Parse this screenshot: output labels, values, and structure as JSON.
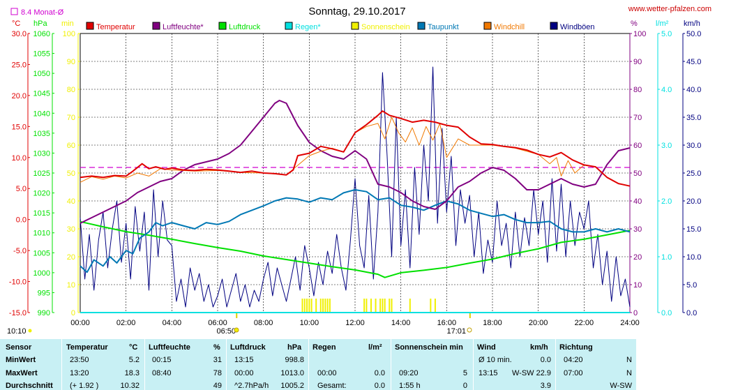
{
  "header": {
    "title": "Sonntag, 29.10.2017",
    "website": "www.wetter-pfalzen.com",
    "month_avg_label": "8.4 Monat-Ø",
    "left_units": [
      "°C",
      "hPa",
      "min"
    ],
    "right_units": [
      "%",
      "l/m²",
      "km/h"
    ],
    "sunrise_time": "06:50",
    "sunset_time": "17:01",
    "start_time": "10:10"
  },
  "colors": {
    "temperatur": "#e00000",
    "luftfeuchte": "#800080",
    "luftdruck": "#00e000",
    "regen": "#00e0e0",
    "sonnenschein": "#f0f000",
    "taupunkt": "#0078b4",
    "windchill": "#f07800",
    "windboeen": "#000080",
    "month_avg": "#d000d0"
  },
  "legend": [
    {
      "key": "temperatur",
      "label": "Temperatur"
    },
    {
      "key": "luftfeuchte",
      "label": "Luftfeuchte*"
    },
    {
      "key": "luftdruck",
      "label": "Luftdruck"
    },
    {
      "key": "regen",
      "label": "Regen*"
    },
    {
      "key": "sonnenschein",
      "label": "Sonnenschein"
    },
    {
      "key": "taupunkt",
      "label": "Taupunkt"
    },
    {
      "key": "windchill",
      "label": "Windchill"
    },
    {
      "key": "windboeen",
      "label": "Windböen"
    }
  ],
  "chart_data": {
    "type": "line",
    "x_ticks": [
      "00:00",
      "02:00",
      "04:00",
      "06:00",
      "08:00",
      "10:00",
      "12:00",
      "14:00",
      "16:00",
      "18:00",
      "20:00",
      "22:00",
      "24:00"
    ],
    "axes": {
      "temperature": {
        "unit": "°C",
        "range": [
          -15,
          30
        ],
        "ticks": [
          "30.0",
          "25.0",
          "20.0",
          "15.0",
          "10.0",
          "5.0",
          "0.0",
          "-5.0",
          "-10.0",
          "-15.0"
        ]
      },
      "pressure": {
        "unit": "hPa",
        "range": [
          990,
          1060
        ],
        "ticks": [
          "1060",
          "1055",
          "1050",
          "1045",
          "1040",
          "1035",
          "1030",
          "1025",
          "1020",
          "1015",
          "1010",
          "1005",
          "1000",
          "995",
          "990"
        ]
      },
      "sunshine": {
        "unit": "min",
        "range": [
          0,
          100
        ],
        "ticks": [
          "100",
          "90",
          "80",
          "70",
          "60",
          "50",
          "40",
          "30",
          "20",
          "10",
          "0"
        ]
      },
      "humidity": {
        "unit": "%",
        "range": [
          0,
          100
        ],
        "ticks": [
          "100",
          "90",
          "80",
          "70",
          "60",
          "50",
          "40",
          "30",
          "20",
          "10",
          "0"
        ]
      },
      "rain": {
        "unit": "l/m²",
        "range": [
          0,
          5
        ],
        "ticks": [
          "5.0",
          "4.0",
          "3.0",
          "2.0",
          "1.0",
          "0.0"
        ]
      },
      "wind": {
        "unit": "km/h",
        "range": [
          0,
          50
        ],
        "ticks": [
          "50.0",
          "45.0",
          "40.0",
          "35.0",
          "30.0",
          "25.0",
          "20.0",
          "15.0",
          "10.0",
          "5.0",
          "0.0"
        ]
      }
    },
    "month_avg_temp": 8.4,
    "series": [
      {
        "key": "temperatur",
        "name": "Temperatur",
        "axis": "temperature",
        "x": [
          0,
          0.5,
          1,
          1.5,
          2,
          2.3,
          2.7,
          3,
          3.3,
          3.7,
          4,
          4.5,
          5,
          5.5,
          6,
          6.5,
          7,
          7.5,
          8,
          8.5,
          9,
          9.3,
          9.5,
          10,
          10.5,
          11,
          11.5,
          12,
          12.5,
          13,
          13.2,
          13.5,
          14,
          14.5,
          15,
          15.5,
          16,
          16.5,
          17,
          17.5,
          18,
          18.5,
          19,
          19.5,
          20,
          20.5,
          21,
          21.5,
          22,
          22.5,
          23,
          23.5,
          24
        ],
        "y": [
          6.8,
          7.0,
          6.8,
          7.1,
          7.0,
          7.8,
          9.0,
          8.2,
          8.5,
          8.1,
          8.3,
          8.0,
          7.9,
          8.1,
          8.0,
          7.8,
          7.6,
          7.8,
          7.5,
          7.4,
          7.2,
          8.0,
          10.3,
          10.7,
          11.8,
          11.4,
          10.9,
          14.0,
          15.3,
          16.8,
          17.5,
          16.8,
          16.3,
          15.7,
          16.0,
          15.7,
          15.2,
          14.9,
          13.3,
          12.2,
          12.1,
          11.8,
          11.6,
          11.2,
          10.5,
          10.1,
          10.8,
          9.6,
          8.8,
          8.5,
          6.8,
          5.8,
          5.4
        ]
      },
      {
        "key": "windchill",
        "name": "Windchill",
        "axis": "temperature",
        "x": [
          0,
          0.5,
          1,
          1.5,
          2,
          2.5,
          3,
          3.5,
          4,
          5,
          6,
          7,
          8,
          9,
          10,
          10.5,
          11,
          11.5,
          12,
          12.5,
          13,
          13.3,
          13.6,
          13.9,
          14.2,
          14.5,
          14.8,
          15.1,
          15.4,
          15.7,
          16,
          16.5,
          17,
          18,
          19,
          20,
          20.5,
          20.8,
          21,
          21.3,
          21.6,
          22,
          22.5,
          23,
          23.5,
          24
        ],
        "y": [
          6.0,
          6.9,
          6.5,
          7.0,
          6.7,
          7.5,
          7.0,
          8.2,
          8.0,
          7.8,
          7.9,
          7.6,
          7.5,
          7.2,
          10.3,
          11.0,
          11.5,
          10.9,
          14.0,
          15.0,
          15.5,
          13.0,
          16.5,
          14.0,
          12.5,
          14.8,
          12.0,
          15.0,
          12.8,
          15.5,
          10.0,
          13.0,
          12.0,
          12.0,
          11.5,
          10.5,
          9.0,
          10.0,
          7.0,
          9.5,
          7.5,
          8.8,
          8.5,
          6.8,
          5.8,
          5.4
        ]
      },
      {
        "key": "taupunkt",
        "name": "Taupunkt",
        "axis": "temperature",
        "x": [
          0,
          0.3,
          0.6,
          1,
          1.3,
          1.6,
          2,
          2.3,
          2.6,
          3,
          3.3,
          3.6,
          4,
          4.5,
          5,
          5.5,
          6,
          6.5,
          7,
          7.5,
          8,
          8.5,
          9,
          9.5,
          10,
          10.5,
          11,
          11.5,
          12,
          12.5,
          13,
          13.5,
          14,
          14.5,
          15,
          15.5,
          16,
          16.5,
          17,
          17.5,
          18,
          18.5,
          19,
          19.5,
          20,
          20.5,
          21,
          21.5,
          22,
          22.5,
          23,
          23.5,
          24
        ],
        "y": [
          -7.5,
          -8.5,
          -6.5,
          -7.5,
          -6.0,
          -7.0,
          -5.0,
          -5.5,
          -3.0,
          -2.0,
          -0.5,
          -1.0,
          -0.5,
          -1.0,
          -1.5,
          -0.5,
          -0.8,
          -0.3,
          0.8,
          1.5,
          2.2,
          3.0,
          3.5,
          3.3,
          2.8,
          3.5,
          3.2,
          4.3,
          4.8,
          4.5,
          3.2,
          3.5,
          2.3,
          2.0,
          1.5,
          2.3,
          3.0,
          2.5,
          1.5,
          1.0,
          0.5,
          0.8,
          0.0,
          -0.5,
          -0.5,
          -0.3,
          -1.5,
          -2.0,
          -2.0,
          -1.5,
          -2.0,
          -1.5,
          -2.0
        ]
      },
      {
        "key": "luftfeuchte",
        "name": "Luftfeuchte",
        "axis": "humidity",
        "x": [
          0,
          0.5,
          1,
          1.5,
          2,
          2.5,
          3,
          3.5,
          4,
          4.5,
          5,
          5.5,
          6,
          6.5,
          7,
          7.5,
          8,
          8.5,
          8.7,
          9,
          9.5,
          10,
          10.5,
          11,
          11.5,
          12,
          12.5,
          13,
          13.5,
          14,
          14.5,
          15,
          15.5,
          16,
          16.5,
          17,
          17.5,
          18,
          18.5,
          19,
          19.5,
          20,
          20.5,
          21,
          21.5,
          22,
          22.5,
          23,
          23.5,
          24
        ],
        "y": [
          32,
          34,
          36,
          38,
          40,
          43,
          45,
          47,
          48,
          51,
          53,
          54,
          55,
          57,
          60,
          65,
          70,
          75,
          76,
          75,
          67,
          61,
          58,
          56,
          55,
          58,
          55,
          46,
          45,
          43,
          40,
          38,
          37,
          40,
          45,
          47,
          50,
          52,
          51,
          48,
          44,
          44,
          46,
          48,
          46,
          45,
          46,
          53,
          58,
          59
        ]
      },
      {
        "key": "luftdruck",
        "name": "Luftdruck",
        "axis": "pressure",
        "x": [
          0,
          1,
          2,
          3,
          4,
          5,
          6,
          7,
          8,
          9,
          10,
          11,
          12,
          13,
          13.3,
          14,
          15,
          16,
          17,
          18,
          19,
          20,
          21,
          22,
          23,
          24
        ],
        "y": [
          1012.8,
          1011.5,
          1010.3,
          1009.4,
          1008.4,
          1007.3,
          1006.3,
          1005.4,
          1004.2,
          1003.3,
          1002.4,
          1001.5,
          1000.7,
          999.6,
          998.8,
          1000.0,
          1000.6,
          1001.3,
          1002.4,
          1003.4,
          1004.8,
          1006.0,
          1007.6,
          1008.4,
          1009.5,
          1010.6
        ]
      },
      {
        "key": "windboeen",
        "name": "Windböen",
        "axis": "wind",
        "x": [
          0,
          0.2,
          0.4,
          0.6,
          0.8,
          1,
          1.2,
          1.4,
          1.6,
          1.8,
          2,
          2.2,
          2.4,
          2.6,
          2.8,
          3,
          3.2,
          3.4,
          3.6,
          3.8,
          4,
          4.2,
          4.4,
          4.6,
          4.8,
          5,
          5.2,
          5.4,
          5.6,
          5.8,
          6,
          6.2,
          6.4,
          6.6,
          6.8,
          7,
          7.2,
          7.4,
          7.6,
          7.8,
          8,
          8.2,
          8.4,
          8.6,
          8.8,
          9,
          9.2,
          9.4,
          9.6,
          9.8,
          10,
          10.2,
          10.4,
          10.6,
          10.8,
          11,
          11.2,
          11.4,
          11.6,
          11.8,
          12,
          12.2,
          12.4,
          12.6,
          12.8,
          13,
          13.2,
          13.4,
          13.6,
          13.8,
          14,
          14.2,
          14.4,
          14.6,
          14.8,
          15,
          15.2,
          15.4,
          15.6,
          15.8,
          16,
          16.2,
          16.4,
          16.6,
          16.8,
          17,
          17.2,
          17.4,
          17.6,
          17.8,
          18,
          18.2,
          18.4,
          18.6,
          18.8,
          19,
          19.2,
          19.4,
          19.6,
          19.8,
          20,
          20.2,
          20.4,
          20.6,
          20.8,
          21,
          21.2,
          21.4,
          21.6,
          21.8,
          22,
          22.2,
          22.4,
          22.6,
          22.8,
          23,
          23.2,
          23.4,
          23.6,
          23.8,
          24
        ],
        "y": [
          17,
          6,
          14,
          4,
          13,
          18,
          8,
          15,
          20,
          9,
          16,
          6,
          19,
          11,
          18,
          4,
          22,
          10,
          20,
          13,
          12,
          2,
          6,
          1,
          8,
          4,
          7,
          2,
          5,
          1,
          3,
          6,
          1,
          4,
          7,
          2,
          5,
          1,
          4,
          2,
          6,
          9,
          3,
          8,
          5,
          2,
          6,
          10,
          4,
          12,
          8,
          3,
          9,
          5,
          11,
          7,
          14,
          8,
          4,
          13,
          24,
          12,
          8,
          21,
          6,
          18,
          43,
          28,
          10,
          35,
          12,
          22,
          8,
          26,
          14,
          30,
          20,
          44,
          16,
          33,
          18,
          28,
          12,
          22,
          16,
          21,
          10,
          18,
          7,
          13,
          9,
          20,
          12,
          16,
          8,
          18,
          10,
          17,
          12,
          22,
          14,
          20,
          9,
          24,
          11,
          23,
          10,
          20,
          12,
          18,
          15,
          20,
          8,
          14,
          5,
          11,
          2,
          10,
          3,
          6,
          1
        ]
      },
      {
        "key": "regen",
        "name": "Regen",
        "axis": "rain",
        "x": [
          0,
          24
        ],
        "y": [
          0,
          0
        ]
      }
    ],
    "sunshine_minutes_bars": {
      "x": [
        9.7,
        9.8,
        9.9,
        10.0,
        10.1,
        10.3,
        10.5,
        10.6,
        10.7,
        10.8,
        10.9,
        12.4,
        12.5,
        12.7,
        12.9,
        13.1,
        13.2,
        13.3,
        13.5,
        13.6,
        14.4,
        15.3,
        15.5
      ],
      "y": [
        5,
        5,
        5,
        5,
        5,
        5,
        5,
        5,
        5,
        5,
        5,
        5,
        5,
        5,
        5,
        5,
        5,
        5,
        5,
        5,
        5,
        5,
        5
      ]
    }
  },
  "table": {
    "headers": {
      "sensor": "Sensor",
      "temperatur": "Temperatur",
      "temp_unit": "°C",
      "luftfeuchte": "Luftfeuchte",
      "hum_unit": "%",
      "luftdruck": "Luftdruck",
      "press_unit": "hPa",
      "regen": "Regen",
      "rain_unit": "l/m²",
      "sonnenschein": "Sonnenschein min",
      "wind": "Wind",
      "wind_unit": "km/h",
      "richtung": "Richtung"
    },
    "rows": [
      {
        "label": "MinWert",
        "temp_time": "23:50",
        "temp_val": "5.2",
        "hum_time": "00:15",
        "hum_val": "31",
        "press_time": "13:15",
        "press_val": "998.8",
        "rain_time": "",
        "rain_val": "",
        "sun_time": "",
        "sun_val": "",
        "wind_time": "Ø 10 min.",
        "wind_val": "0.0",
        "dir_time": "04:20",
        "dir_val": "N"
      },
      {
        "label": "MaxWert",
        "temp_time": "13:20",
        "temp_val": "18.3",
        "hum_time": "08:40",
        "hum_val": "78",
        "press_time": "00:00",
        "press_val": "1013.0",
        "rain_time": "00:00",
        "rain_val": "0.0",
        "sun_time": "09:20",
        "sun_val": "5",
        "wind_time": "13:15",
        "wind_val": "W-SW 22.9",
        "dir_time": "07:00",
        "dir_val": "N"
      },
      {
        "label": "Durchschnitt",
        "temp_time": "(+ 1.92 )",
        "temp_val": "10.32",
        "hum_time": "",
        "hum_val": "49",
        "press_time": "^2.7hPa/h",
        "press_val": "1005.2",
        "rain_time": "Gesamt:",
        "rain_val": "0.0",
        "sun_time": "1:55 h",
        "sun_val": "0",
        "wind_time": "",
        "wind_val": "3.9",
        "dir_time": "",
        "dir_val": "W-SW"
      }
    ]
  }
}
